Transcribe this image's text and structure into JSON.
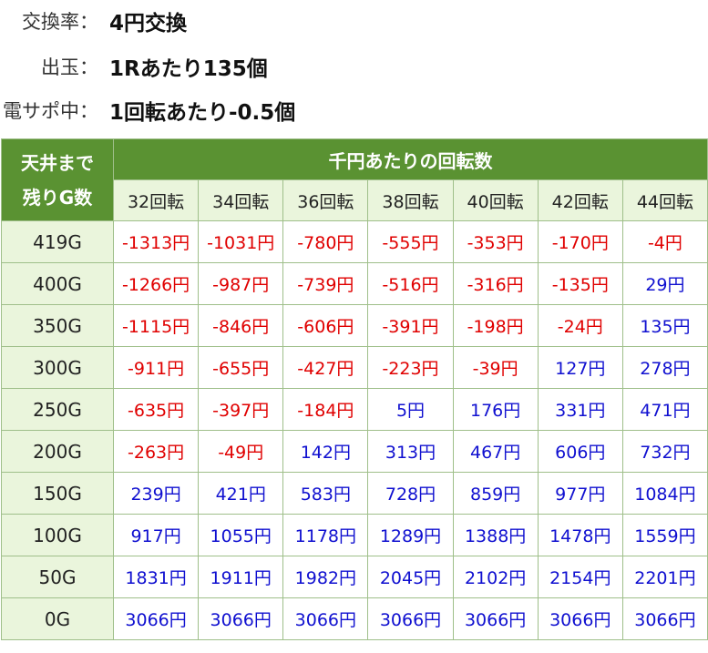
{
  "info": [
    {
      "label": "交換率：",
      "value": "4円交換"
    },
    {
      "label": "出玉：",
      "value": "1Rあたり135個"
    },
    {
      "label": "電サポ中：",
      "value": "1回転あたり-0.5個"
    }
  ],
  "table": {
    "corner_line1": "天井まで",
    "corner_line2": "残りG数",
    "group_header": "千円あたりの回転数",
    "columns": [
      "32回転",
      "34回転",
      "36回転",
      "38回転",
      "40回転",
      "42回転",
      "44回転"
    ],
    "rows": [
      {
        "label": "419G",
        "values": [
          "-1313円",
          "-1031円",
          "-780円",
          "-555円",
          "-353円",
          "-170円",
          "-4円"
        ]
      },
      {
        "label": "400G",
        "values": [
          "-1266円",
          "-987円",
          "-739円",
          "-516円",
          "-316円",
          "-135円",
          "29円"
        ]
      },
      {
        "label": "350G",
        "values": [
          "-1115円",
          "-846円",
          "-606円",
          "-391円",
          "-198円",
          "-24円",
          "135円"
        ]
      },
      {
        "label": "300G",
        "values": [
          "-911円",
          "-655円",
          "-427円",
          "-223円",
          "-39円",
          "127円",
          "278円"
        ]
      },
      {
        "label": "250G",
        "values": [
          "-635円",
          "-397円",
          "-184円",
          "5円",
          "176円",
          "331円",
          "471円"
        ]
      },
      {
        "label": "200G",
        "values": [
          "-263円",
          "-49円",
          "142円",
          "313円",
          "467円",
          "606円",
          "732円"
        ]
      },
      {
        "label": "150G",
        "values": [
          "239円",
          "421円",
          "583円",
          "728円",
          "859円",
          "977円",
          "1084円"
        ]
      },
      {
        "label": "100G",
        "values": [
          "917円",
          "1055円",
          "1178円",
          "1289円",
          "1388円",
          "1478円",
          "1559円"
        ]
      },
      {
        "label": "50G",
        "values": [
          "1831円",
          "1911円",
          "1982円",
          "2045円",
          "2102円",
          "2154円",
          "2201円"
        ]
      },
      {
        "label": "0G",
        "values": [
          "3066円",
          "3066円",
          "3066円",
          "3066円",
          "3066円",
          "3066円",
          "3066円"
        ]
      }
    ]
  },
  "colors": {
    "header_green": "#5a9232",
    "light_green": "#eaf5dc",
    "negative": "#e00000",
    "positive": "#1010d0"
  }
}
